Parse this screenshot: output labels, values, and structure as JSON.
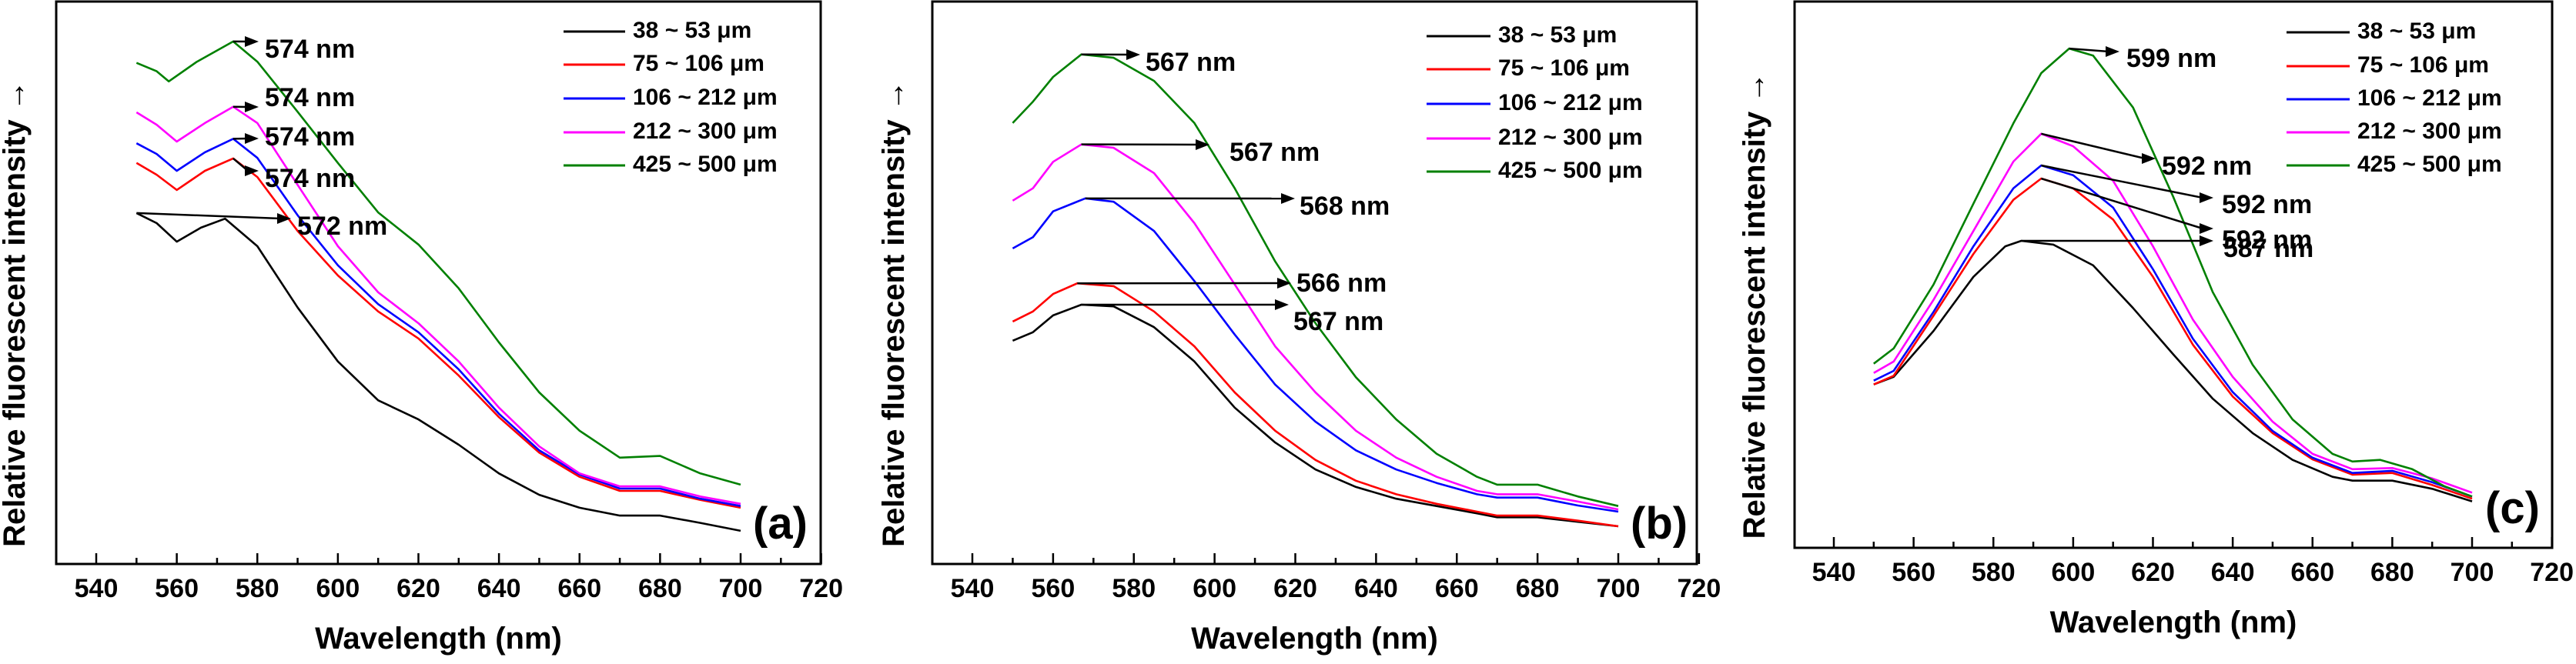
{
  "chart_data": [
    {
      "type": "line",
      "panel_label": "(a)",
      "xlabel": "Wavelength (nm)",
      "ylabel": "Relative fluorescent intensity",
      "ylabel_arrow": "→",
      "xlim": [
        530,
        720
      ],
      "ylim": [
        0,
        100
      ],
      "x_ticks": [
        540,
        560,
        580,
        600,
        620,
        640,
        660,
        680,
        700,
        720
      ],
      "y_ticks_shown": false,
      "grid": false,
      "legend_position": "top-right",
      "series": [
        {
          "name": "38 ~ 53 μm",
          "color": "#000000",
          "x": [
            550,
            555,
            560,
            566,
            572,
            580,
            590,
            600,
            610,
            620,
            630,
            640,
            650,
            660,
            670,
            680,
            690,
            700
          ],
          "y": [
            62.4,
            60.6,
            57.3,
            59.8,
            61.4,
            56.5,
            45.6,
            36.0,
            29.1,
            25.7,
            21.2,
            16.1,
            12.3,
            10.0,
            8.6,
            8.6,
            7.3,
            5.9
          ],
          "peak_nm": 572,
          "annotation": "572 nm"
        },
        {
          "name": "75 ~ 106 μm",
          "color": "#ff0000",
          "x": [
            550,
            555,
            560,
            567,
            574,
            580,
            590,
            600,
            610,
            620,
            630,
            640,
            650,
            660,
            670,
            680,
            690,
            700
          ],
          "y": [
            71.3,
            69.2,
            66.5,
            69.9,
            72.1,
            68.8,
            59.2,
            51.3,
            44.9,
            40.1,
            33.5,
            26.1,
            19.8,
            15.5,
            13.0,
            13.0,
            11.4,
            10.0
          ],
          "peak_nm": 574,
          "annotation": "574 nm"
        },
        {
          "name": "106 ~ 212 μm",
          "color": "#0000ff",
          "x": [
            550,
            555,
            560,
            567,
            574,
            580,
            590,
            600,
            610,
            620,
            630,
            640,
            650,
            660,
            670,
            680,
            690,
            700
          ],
          "y": [
            74.8,
            72.9,
            69.9,
            73.2,
            75.6,
            72.2,
            62.0,
            53.1,
            46.2,
            41.2,
            34.6,
            26.7,
            20.2,
            15.9,
            13.4,
            13.4,
            11.6,
            10.3
          ],
          "peak_nm": 574,
          "annotation": "574 nm"
        },
        {
          "name": "212 ~ 300 μm",
          "color": "#ff00ff",
          "x": [
            550,
            555,
            560,
            567,
            574,
            580,
            590,
            600,
            610,
            620,
            630,
            640,
            650,
            660,
            670,
            680,
            690,
            700
          ],
          "y": [
            80.3,
            78.1,
            75.1,
            78.4,
            81.3,
            78.4,
            67.4,
            56.5,
            48.3,
            42.8,
            36.0,
            27.8,
            20.9,
            16.1,
            13.8,
            13.8,
            12.0,
            10.7
          ],
          "peak_nm": 574,
          "annotation": "574 nm"
        },
        {
          "name": "425 ~ 500 μm",
          "color": "#008000",
          "x": [
            550,
            555,
            558,
            565,
            574,
            580,
            590,
            600,
            610,
            620,
            630,
            640,
            650,
            660,
            670,
            680,
            690,
            700
          ],
          "y": [
            89.1,
            87.6,
            85.8,
            89.3,
            92.9,
            89.3,
            80.4,
            71.3,
            62.5,
            56.8,
            49.0,
            39.4,
            30.5,
            23.7,
            18.9,
            19.2,
            16.1,
            14.1
          ],
          "peak_nm": 574,
          "annotation": "574 nm"
        }
      ]
    },
    {
      "type": "line",
      "panel_label": "(b)",
      "xlabel": "Wavelength (nm)",
      "ylabel": "Relative fluorescent intensity",
      "ylabel_arrow": "→",
      "xlim": [
        530,
        720
      ],
      "ylim": [
        0,
        100
      ],
      "x_ticks": [
        540,
        560,
        580,
        600,
        620,
        640,
        660,
        680,
        700,
        720
      ],
      "y_ticks_shown": false,
      "grid": false,
      "legend_position": "top-right",
      "series": [
        {
          "name": "38 ~ 53 μm",
          "color": "#000000",
          "x": [
            550,
            555,
            560,
            567,
            575,
            585,
            595,
            605,
            615,
            625,
            635,
            645,
            655,
            665,
            670,
            680,
            690,
            700
          ],
          "y": [
            39.7,
            41.2,
            44.2,
            46.1,
            45.8,
            42.1,
            36.0,
            27.8,
            21.6,
            16.8,
            13.7,
            11.6,
            10.3,
            9.0,
            8.3,
            8.3,
            7.5,
            6.7
          ],
          "peak_nm": 567,
          "annotation": "567 nm"
        },
        {
          "name": "75 ~ 106 μm",
          "color": "#ff0000",
          "x": [
            550,
            555,
            560,
            566,
            575,
            585,
            595,
            605,
            615,
            625,
            635,
            645,
            655,
            665,
            670,
            680,
            690,
            700
          ],
          "y": [
            43.1,
            44.9,
            48.0,
            49.9,
            49.4,
            44.9,
            38.7,
            30.5,
            23.7,
            18.5,
            14.8,
            12.4,
            10.7,
            9.3,
            8.6,
            8.6,
            7.7,
            6.7
          ],
          "peak_nm": 566,
          "annotation": "566 nm"
        },
        {
          "name": "106 ~ 212 μm",
          "color": "#0000ff",
          "x": [
            550,
            555,
            560,
            568,
            575,
            585,
            595,
            605,
            615,
            625,
            635,
            645,
            655,
            665,
            670,
            680,
            690,
            700
          ],
          "y": [
            56.1,
            58.1,
            62.7,
            65.0,
            64.4,
            59.2,
            50.3,
            40.8,
            31.9,
            25.3,
            20.2,
            16.8,
            14.4,
            12.4,
            11.8,
            11.8,
            10.4,
            9.3
          ],
          "peak_nm": 568,
          "annotation": "568 nm"
        },
        {
          "name": "212 ~ 300 μm",
          "color": "#ff00ff",
          "x": [
            550,
            555,
            560,
            567,
            575,
            585,
            595,
            605,
            615,
            625,
            635,
            645,
            655,
            665,
            670,
            680,
            690,
            700
          ],
          "y": [
            64.6,
            66.8,
            71.5,
            74.6,
            74.0,
            69.5,
            60.6,
            49.7,
            38.7,
            30.5,
            23.7,
            18.9,
            15.5,
            13.0,
            12.4,
            12.4,
            11.1,
            9.7
          ],
          "peak_nm": 567,
          "annotation": "567 nm"
        },
        {
          "name": "425 ~ 500 μm",
          "color": "#008000",
          "x": [
            550,
            555,
            560,
            567,
            575,
            585,
            595,
            605,
            615,
            625,
            635,
            645,
            655,
            665,
            670,
            680,
            690,
            700
          ],
          "y": [
            78.4,
            82.2,
            86.6,
            90.6,
            90.0,
            85.9,
            78.4,
            66.8,
            53.8,
            42.8,
            33.2,
            25.7,
            19.6,
            15.5,
            14.1,
            14.1,
            12.0,
            10.3
          ],
          "peak_nm": 567,
          "annotation": "567 nm"
        }
      ]
    },
    {
      "type": "line",
      "panel_label": "(c)",
      "xlabel": "Wavelength (nm)",
      "ylabel": "Relative fluorescent intensity",
      "ylabel_arrow": "→",
      "xlim": [
        530,
        720
      ],
      "ylim": [
        0,
        100
      ],
      "x_ticks": [
        540,
        560,
        580,
        600,
        620,
        640,
        660,
        680,
        700,
        720
      ],
      "y_ticks_shown": false,
      "grid": false,
      "legend_position": "top-right",
      "series": [
        {
          "name": "38 ~ 53 μm",
          "color": "#000000",
          "x": [
            550,
            555,
            565,
            575,
            583,
            587,
            595,
            605,
            615,
            625,
            635,
            645,
            655,
            665,
            670,
            680,
            690,
            700
          ],
          "y": [
            29.9,
            31.3,
            39.7,
            49.6,
            55.2,
            56.2,
            55.5,
            51.7,
            43.9,
            35.5,
            27.3,
            21.0,
            16.1,
            13.0,
            12.3,
            12.3,
            10.8,
            8.5
          ],
          "peak_nm": 587,
          "annotation": "587 nm"
        },
        {
          "name": "75 ~ 106 μm",
          "color": "#ff0000",
          "x": [
            550,
            555,
            565,
            575,
            585,
            592,
            600,
            610,
            620,
            630,
            640,
            650,
            660,
            670,
            680,
            690,
            700
          ],
          "y": [
            29.9,
            31.5,
            42.5,
            53.8,
            63.7,
            67.6,
            65.8,
            60.1,
            49.6,
            37.2,
            27.7,
            21.0,
            16.2,
            13.4,
            13.7,
            11.5,
            9.0
          ],
          "peak_nm": 592,
          "annotation": "592 nm"
        },
        {
          "name": "106 ~ 212 μm",
          "color": "#0000ff",
          "x": [
            550,
            555,
            565,
            575,
            585,
            592,
            600,
            610,
            620,
            630,
            640,
            650,
            660,
            670,
            680,
            690,
            700
          ],
          "y": [
            30.6,
            32.4,
            43.2,
            55.2,
            65.8,
            70.0,
            68.2,
            62.3,
            51.0,
            38.3,
            28.5,
            21.4,
            16.5,
            13.7,
            14.1,
            12.0,
            9.4
          ],
          "peak_nm": 592,
          "annotation": "592 nm"
        },
        {
          "name": "212 ~ 300 μm",
          "color": "#ff00ff",
          "x": [
            550,
            555,
            565,
            575,
            585,
            592,
            600,
            610,
            620,
            630,
            640,
            650,
            660,
            670,
            680,
            690,
            700
          ],
          "y": [
            32.0,
            34.1,
            45.4,
            58.0,
            70.7,
            75.8,
            73.5,
            67.2,
            55.2,
            41.8,
            31.3,
            23.1,
            17.2,
            14.4,
            14.6,
            12.7,
            10.1
          ],
          "peak_nm": 592,
          "annotation": "592 nm"
        },
        {
          "name": "425 ~ 500 μm",
          "color": "#008000",
          "x": [
            550,
            555,
            565,
            575,
            585,
            592,
            599,
            605,
            615,
            625,
            635,
            645,
            655,
            665,
            670,
            677,
            685,
            693,
            700
          ],
          "y": [
            33.7,
            36.5,
            48.2,
            63.0,
            77.7,
            86.9,
            91.4,
            90.1,
            80.6,
            64.4,
            46.8,
            33.5,
            23.5,
            17.2,
            15.8,
            16.1,
            14.4,
            11.3,
            9.4
          ],
          "peak_nm": 599,
          "annotation": "599 nm"
        }
      ]
    }
  ]
}
